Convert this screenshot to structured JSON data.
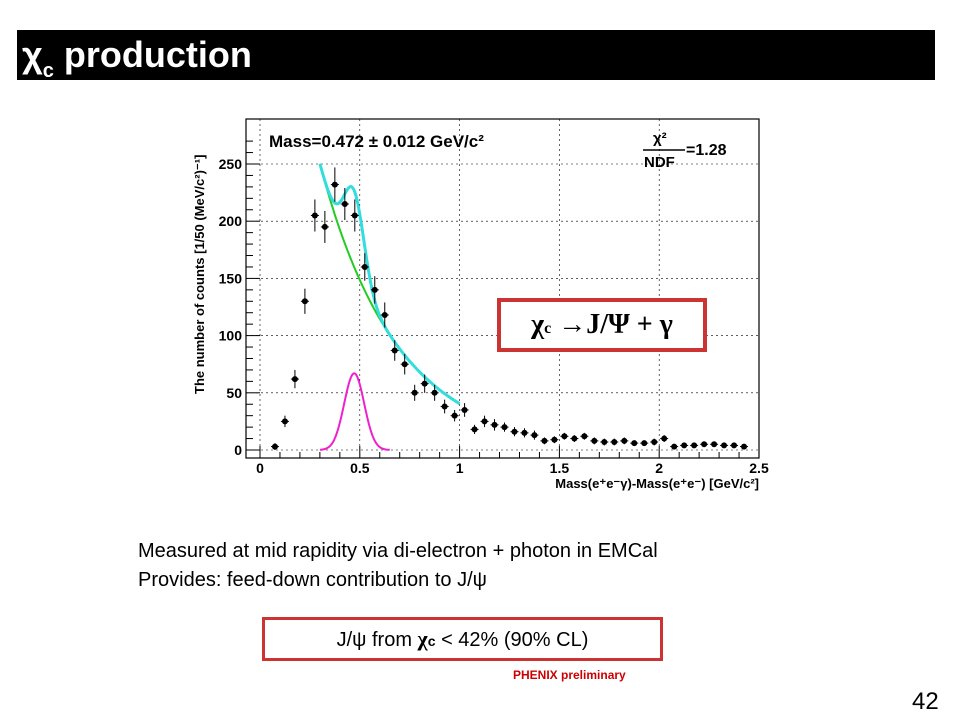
{
  "slide": {
    "title_symbol": "χ",
    "title_sub": "c",
    "title_rest": " production",
    "page_number": "42"
  },
  "channel_label": {
    "chi": "χ",
    "sub": "c",
    "rest": " →J/Ψ + γ"
  },
  "description": {
    "line1": "Measured at mid rapidity via di-electron + photon in EMCal",
    "line2": "Provides: feed-down contribution to J/ψ"
  },
  "result": {
    "before": "J/ψ from ",
    "chi": "χ",
    "sub": "c",
    "after": " < 42% (90% CL)"
  },
  "preliminary_label": "PHENIX preliminary",
  "colors": {
    "fit_total": "#33dddd",
    "fit_background": "#22cc22",
    "signal": "#ee22cc",
    "box_border": "#cc3333",
    "preliminary": "#cc0000"
  },
  "chart_data": {
    "type": "scatter",
    "ylabel": "The number of counts [1/50 (MeV/c²)⁻¹]",
    "xlabel": "Mass(e⁺e⁻γ)-Mass(e⁺e⁻) [GeV/c²]",
    "xlim": [
      0,
      2.5
    ],
    "ylim": [
      0,
      275
    ],
    "x_ticks": [
      0,
      0.5,
      1,
      1.5,
      2,
      2.5
    ],
    "y_ticks": [
      0,
      50,
      100,
      150,
      200,
      250
    ],
    "grid": true,
    "fit_text_mass": "Mass=0.472 ± 0.012 GeV/c²",
    "fit_text_chi2": "χ²",
    "fit_text_ndf": "NDF",
    "fit_text_value": "=1.28",
    "series": [
      {
        "type": "points",
        "x": [
          0.075,
          0.125,
          0.175,
          0.225,
          0.275,
          0.325,
          0.375,
          0.425,
          0.475,
          0.525,
          0.575,
          0.625,
          0.675,
          0.725,
          0.775,
          0.825,
          0.875,
          0.925,
          0.975,
          1.025,
          1.075,
          1.125,
          1.175,
          1.225,
          1.275,
          1.325,
          1.375,
          1.425,
          1.475,
          1.525,
          1.575,
          1.625,
          1.675,
          1.725,
          1.775,
          1.825,
          1.875,
          1.925,
          1.975,
          2.025,
          2.075,
          2.125,
          2.175,
          2.225,
          2.275,
          2.325,
          2.375,
          2.425
        ],
        "y": [
          3,
          25,
          62,
          130,
          205,
          195,
          232,
          215,
          205,
          160,
          140,
          118,
          87,
          75,
          50,
          58,
          50,
          38,
          30,
          35,
          18,
          25,
          22,
          20,
          16,
          15,
          13,
          8,
          9,
          12,
          10,
          12,
          8,
          7,
          7,
          8,
          6,
          6,
          7,
          10,
          3,
          4,
          4,
          5,
          5,
          4,
          4,
          3
        ],
        "err": [
          3,
          5,
          8,
          11,
          14,
          14,
          15,
          14,
          14,
          12,
          12,
          11,
          9,
          9,
          7,
          8,
          7,
          6,
          5,
          6,
          4,
          5,
          5,
          4,
          4,
          4,
          4,
          3,
          3,
          3,
          3,
          3,
          3,
          3,
          3,
          3,
          2,
          2,
          3,
          3,
          2,
          2,
          2,
          2,
          2,
          2,
          2,
          2
        ]
      },
      {
        "type": "gaussian",
        "amplitude": 67,
        "mean": 0.472,
        "sigma": 0.05,
        "xrange": [
          0.3,
          0.65
        ]
      },
      {
        "type": "exponential",
        "amplitude": 250,
        "x0": 0.3,
        "decay": 2.6,
        "xrange": [
          0.3,
          1.0
        ]
      }
    ]
  }
}
